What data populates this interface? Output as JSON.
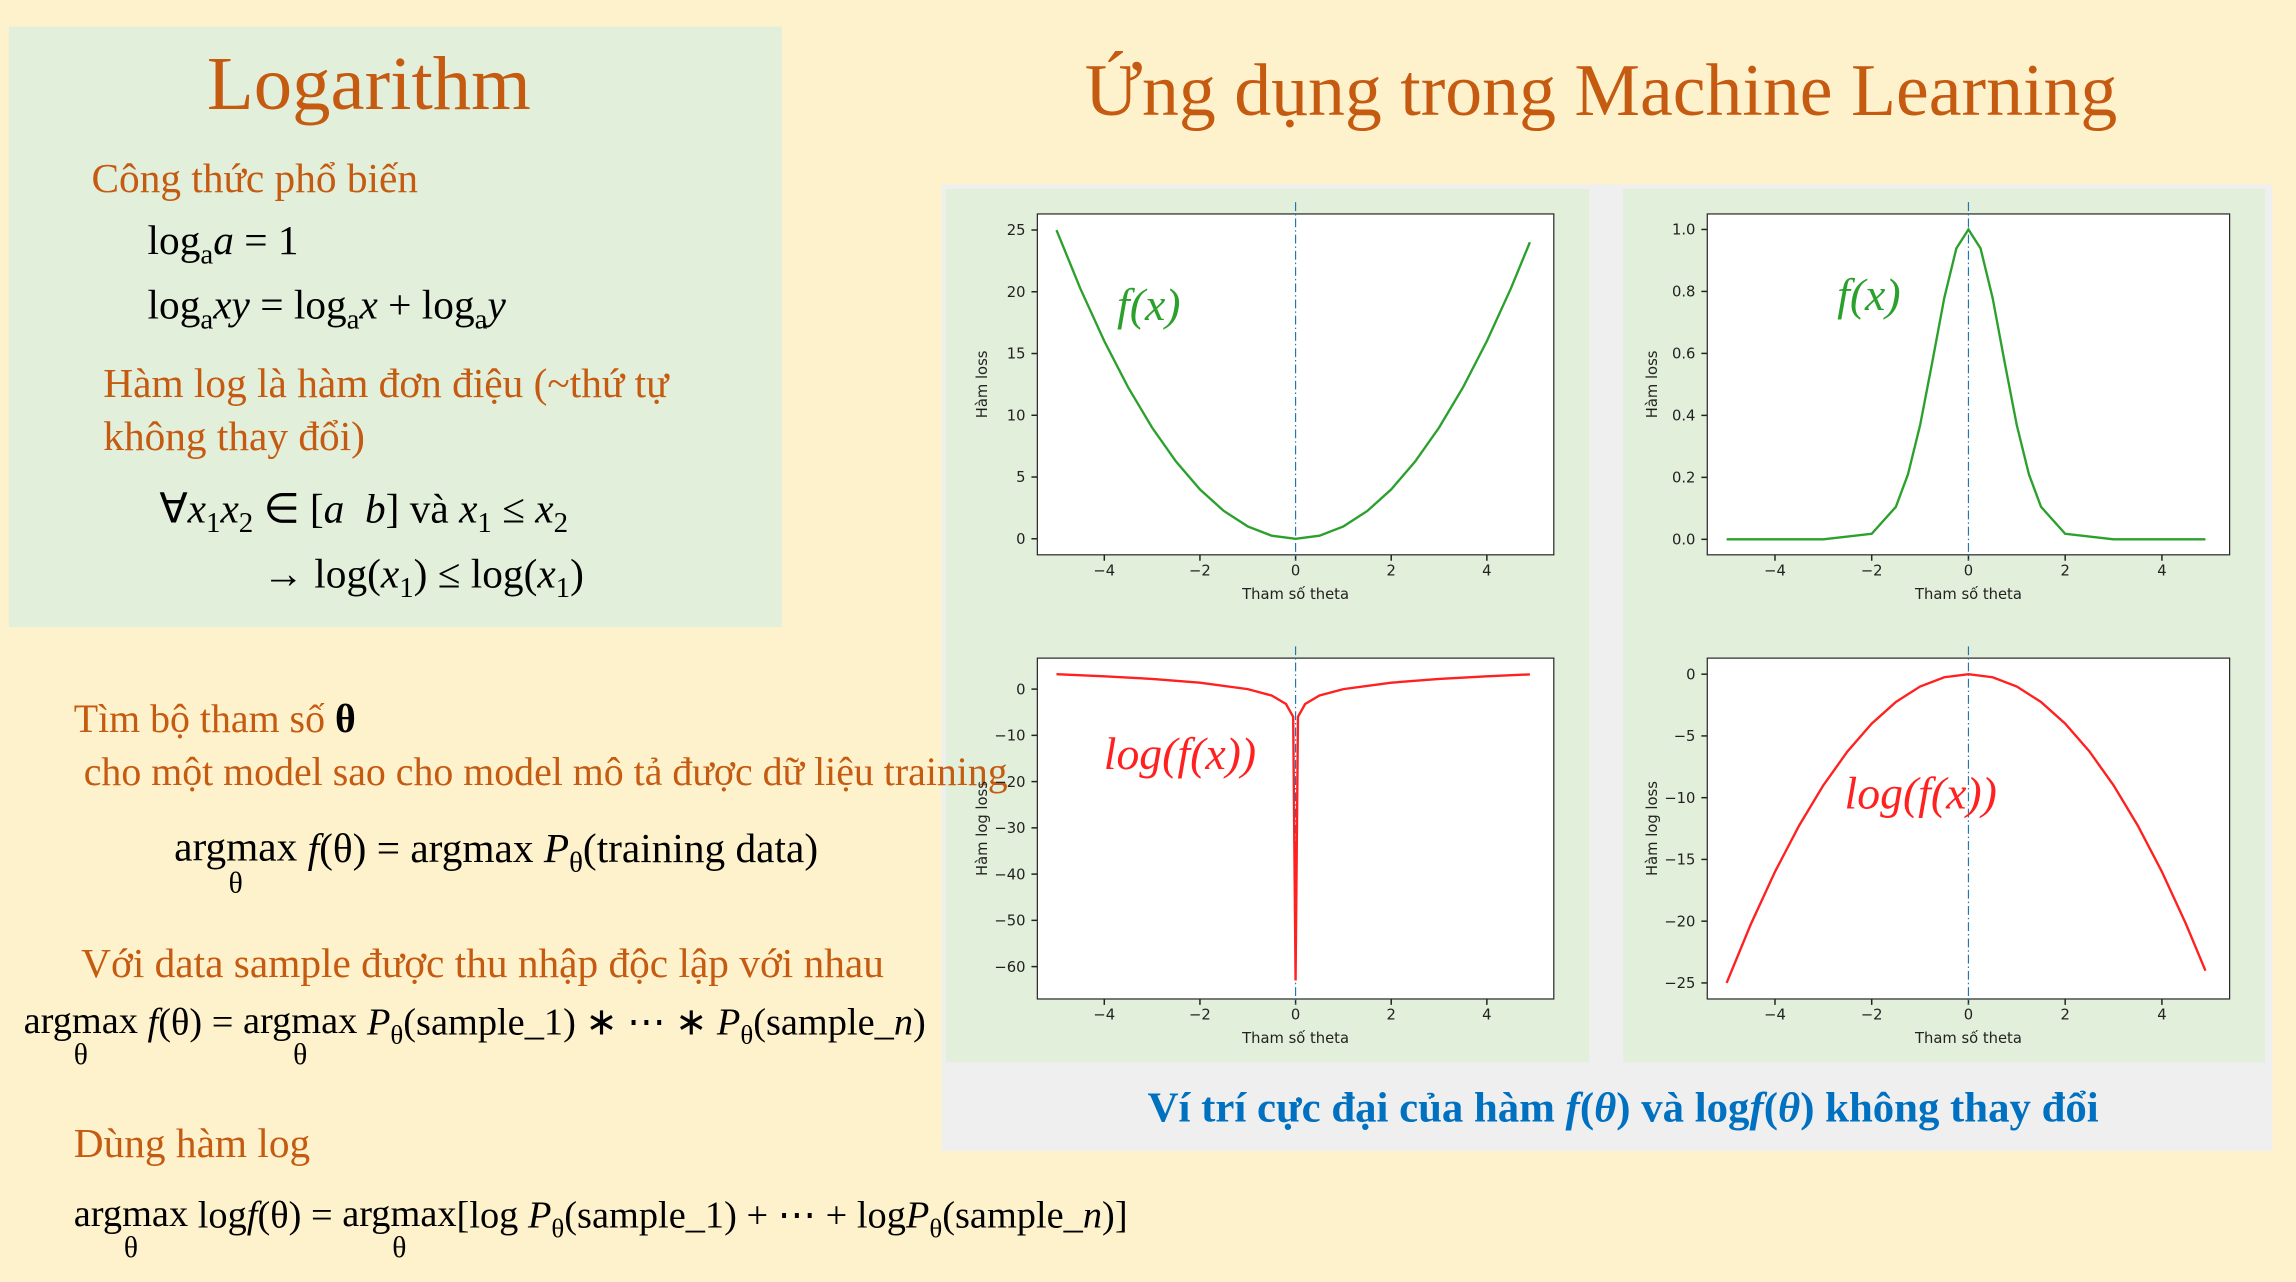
{
  "left_title": "Logarithm",
  "right_title": "Ứng dụng trong Machine Learning",
  "section_1": "Công thức phổ biến",
  "formulas": [
    [
      "log",
      {
        "sub": "a"
      },
      {
        "i": "a"
      },
      " = 1"
    ],
    [
      "log",
      {
        "sub": "a"
      },
      {
        "i": "xy"
      },
      " = log",
      {
        "sub": "a"
      },
      {
        "i": "x"
      },
      " + log",
      {
        "sub": "a"
      },
      {
        "i": "y"
      }
    ],
    [
      "∀",
      {
        "i": "x"
      },
      {
        "sub": "1"
      },
      {
        "i": "x"
      },
      {
        "sub": "2"
      },
      " ∈ [",
      {
        "i": "a  b"
      },
      "] và ",
      {
        "i": "x"
      },
      {
        "sub": "1"
      },
      " ≤ ",
      {
        "i": "x"
      },
      {
        "sub": "2"
      }
    ],
    [
      "→ log(",
      {
        "i": "x"
      },
      {
        "sub": "1"
      },
      ") ≤ log(",
      {
        "i": "x"
      },
      {
        "sub": "1"
      },
      ")"
    ],
    [
      {
        "under": [
          "argmax",
          "θ"
        ]
      },
      {
        "i": " f"
      },
      "(θ) = argmax ",
      {
        "i": "P"
      },
      {
        "sub": "θ"
      },
      "(training data)"
    ],
    [
      {
        "under": [
          "argmax",
          "θ"
        ]
      },
      {
        "i": " f"
      },
      "(θ) = ",
      {
        "under": [
          "argmax",
          "θ"
        ]
      },
      {
        "i": " P"
      },
      {
        "sub": "θ"
      },
      "(sample_1) ∗ ⋯ ∗ ",
      {
        "i": "P"
      },
      {
        "sub": "θ"
      },
      "(sample_",
      {
        "i": "n"
      },
      ")"
    ],
    [
      {
        "under": [
          "argmax",
          "θ"
        ]
      },
      " log",
      {
        "i": "f"
      },
      "(θ) = ",
      {
        "under": [
          "argmax",
          "θ"
        ]
      },
      "[log ",
      {
        "i": "P"
      },
      {
        "sub": "θ"
      },
      "(sample_1) + ⋯ + log",
      {
        "i": "P"
      },
      {
        "sub": "θ"
      },
      "(sample_",
      {
        "i": "n"
      },
      ")]"
    ]
  ],
  "section_2": "Hàm log là hàm đơn điệu (~thứ tự không thay đổi)",
  "section_3": [
    "Tìm bộ tham số ",
    {
      "b": "θ"
    },
    " cho một model sao cho model mô tả được dữ liệu training"
  ],
  "section_4": "Với data sample được thu nhập độc lập với nhau",
  "section_5": "Dùng hàm log",
  "caption": [
    "Ví trí cực đại của hàm ",
    {
      "i": "f"
    },
    "(",
    {
      "i": "θ"
    },
    ") và log",
    {
      "i": "f"
    },
    "(",
    {
      "i": "θ"
    },
    ") không thay đổi"
  ],
  "chart_data": [
    {
      "type": "line",
      "xlabel": "Tham số theta",
      "ylabel": "Hàm loss",
      "annotation": "f(x)",
      "vline": 0,
      "x": [
        -5,
        -4.5,
        -4,
        -3.5,
        -3,
        -2.5,
        -2,
        -1.5,
        -1,
        -0.5,
        0,
        0.5,
        1,
        1.5,
        2,
        2.5,
        3,
        3.5,
        4,
        4.5,
        4.9
      ],
      "series": [
        {
          "color": "#2ca02c",
          "values": [
            25,
            20.25,
            16,
            12.25,
            9,
            6.25,
            4,
            2.25,
            1,
            0.25,
            0,
            0.25,
            1,
            2.25,
            4,
            6.25,
            9,
            12.25,
            16,
            20.25,
            24.01
          ]
        }
      ],
      "xlim": [
        -5.4,
        5.4
      ],
      "ylim": [
        -1.3,
        26.3
      ],
      "xticks": [
        {
          "value": -4,
          "label": "−4"
        },
        {
          "value": -2,
          "label": "−2"
        },
        0,
        2,
        4
      ],
      "yticks": [
        0,
        5,
        10,
        15,
        20,
        25
      ]
    },
    {
      "type": "line",
      "xlabel": "Tham số theta",
      "ylabel": "Hàm loss",
      "annotation": "f(x)",
      "vline": 0,
      "x": [
        -5,
        -4,
        -3,
        -2,
        -1.5,
        -1.25,
        -1,
        -0.75,
        -0.5,
        -0.25,
        0,
        0.25,
        0.5,
        0.75,
        1,
        1.25,
        1.5,
        2,
        3,
        4,
        4.9
      ],
      "series": [
        {
          "color": "#2ca02c",
          "values": [
            0,
            0,
            0,
            0.018,
            0.105,
            0.21,
            0.368,
            0.57,
            0.779,
            0.939,
            1,
            0.939,
            0.779,
            0.57,
            0.368,
            0.21,
            0.105,
            0.018,
            0,
            0,
            0
          ]
        }
      ],
      "xlim": [
        -5.4,
        5.4
      ],
      "ylim": [
        -0.05,
        1.05
      ],
      "xticks": [
        {
          "value": -4,
          "label": "−4"
        },
        {
          "value": -2,
          "label": "−2"
        },
        0,
        2,
        4
      ],
      "yticks": [
        {
          "value": 0,
          "label": "0.0"
        },
        {
          "value": 0.2,
          "label": "0.2"
        },
        {
          "value": 0.4,
          "label": "0.4"
        },
        {
          "value": 0.6,
          "label": "0.6"
        },
        {
          "value": 0.8,
          "label": "0.8"
        },
        {
          "value": 1,
          "label": "1.0"
        }
      ]
    },
    {
      "type": "line",
      "xlabel": "Tham số theta",
      "ylabel": "Hàm log loss",
      "annotation": "log(f(x))",
      "vline": 0,
      "x": [
        -5,
        -4,
        -3,
        -2,
        -1,
        -0.5,
        -0.2,
        -0.05,
        0,
        0.05,
        0.2,
        0.5,
        1,
        2,
        3,
        4,
        4.9
      ],
      "series": [
        {
          "color": "#ff2020",
          "values": [
            3.22,
            2.77,
            2.2,
            1.39,
            0,
            -1.39,
            -3.22,
            -5.99,
            -63,
            -5.99,
            -3.22,
            -1.39,
            0,
            1.39,
            2.2,
            2.77,
            3.18
          ]
        }
      ],
      "xlim": [
        -5.4,
        5.4
      ],
      "ylim": [
        -67,
        6.7
      ],
      "xticks": [
        {
          "value": -4,
          "label": "−4"
        },
        {
          "value": -2,
          "label": "−2"
        },
        0,
        2,
        4
      ],
      "yticks": [
        0,
        {
          "value": -10,
          "label": "−10"
        },
        {
          "value": -20,
          "label": "−20"
        },
        {
          "value": -30,
          "label": "−30"
        },
        {
          "value": -40,
          "label": "−40"
        },
        {
          "value": -50,
          "label": "−50"
        },
        {
          "value": -60,
          "label": "−60"
        }
      ]
    },
    {
      "type": "line",
      "xlabel": "Tham số theta",
      "ylabel": "Hàm log loss",
      "annotation": "log(f(x))",
      "vline": 0,
      "x": [
        -5,
        -4.5,
        -4,
        -3.5,
        -3,
        -2.5,
        -2,
        -1.5,
        -1,
        -0.5,
        0,
        0.5,
        1,
        1.5,
        2,
        2.5,
        3,
        3.5,
        4,
        4.5,
        4.9
      ],
      "series": [
        {
          "color": "#ff2020",
          "values": [
            -25,
            -20.25,
            -16,
            -12.25,
            -9,
            -6.25,
            -4,
            -2.25,
            -1,
            -0.25,
            0,
            -0.25,
            -1,
            -2.25,
            -4,
            -6.25,
            -9,
            -12.25,
            -16,
            -20.25,
            -24.01
          ]
        }
      ],
      "xlim": [
        -5.4,
        5.4
      ],
      "ylim": [
        -26.3,
        1.3
      ],
      "xticks": [
        {
          "value": -4,
          "label": "−4"
        },
        {
          "value": -2,
          "label": "−2"
        },
        0,
        2,
        4
      ],
      "yticks": [
        0,
        {
          "value": -5,
          "label": "−5"
        },
        {
          "value": -10,
          "label": "−10"
        },
        {
          "value": -15,
          "label": "−15"
        },
        {
          "value": -20,
          "label": "−20"
        },
        {
          "value": -25,
          "label": "−25"
        }
      ]
    }
  ]
}
